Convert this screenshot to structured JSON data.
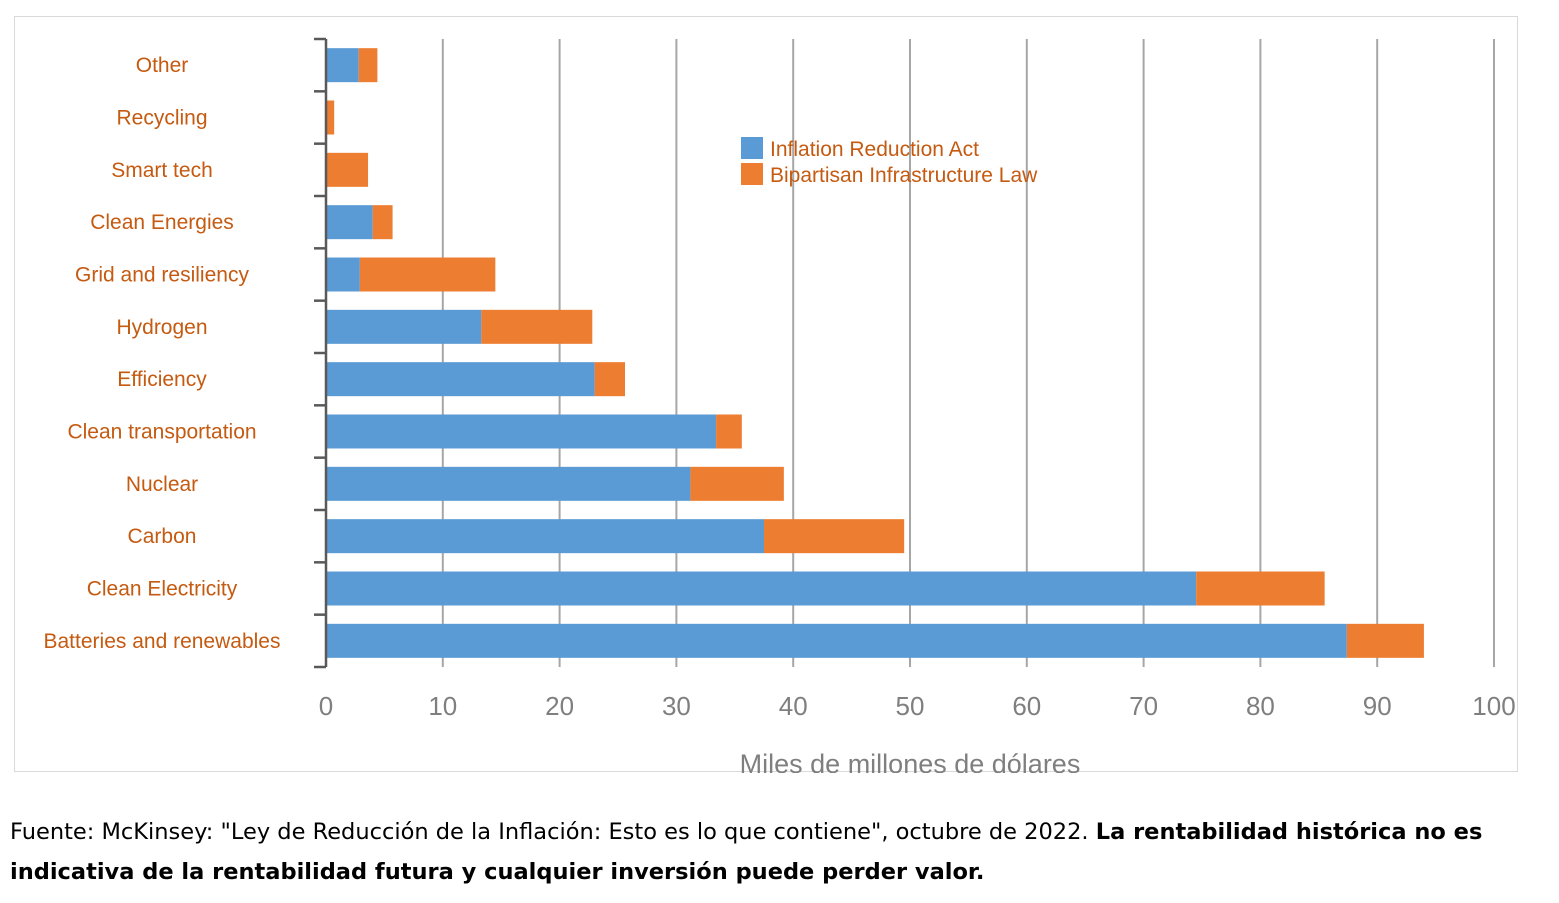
{
  "chart_data": {
    "type": "bar",
    "orientation": "horizontal",
    "stacked": true,
    "categories": [
      "Other",
      "Recycling",
      "Smart tech",
      "Clean Energies",
      "Grid and resiliency",
      "Hydrogen",
      "Efficiency",
      "Clean transportation",
      "Nuclear",
      "Carbon",
      "Clean Electricity",
      "Batteries and renewables"
    ],
    "series": [
      {
        "name": "Inflation Reduction Act",
        "color": "#5b9bd5",
        "values": [
          2.8,
          0,
          0,
          4.0,
          2.9,
          13.3,
          23.0,
          33.4,
          31.2,
          37.5,
          74.5,
          87.4
        ]
      },
      {
        "name": "Bipartisan Infrastructure Law",
        "color": "#ed7d31",
        "values": [
          1.6,
          0.7,
          3.6,
          1.7,
          11.6,
          9.5,
          2.6,
          2.2,
          8.0,
          12.0,
          11.0,
          6.6
        ]
      }
    ],
    "xlabel": "Miles de millones de dólares",
    "xlim": [
      0,
      100
    ],
    "xticks": [
      "0",
      "10",
      "20",
      "30",
      "40",
      "50",
      "60",
      "70",
      "80",
      "90",
      "100"
    ],
    "grid": true,
    "legend": "top-center",
    "category_label_color": "#c55a11"
  },
  "caption": {
    "normal": "Fuente: McKinsey: \"Ley de Reducción de la Inflación: Esto es lo que contiene\", octubre de 2022. ",
    "bold": "La rentabilidad histórica no es indicativa de la rentabilidad futura y cualquier inversión puede perder valor."
  }
}
